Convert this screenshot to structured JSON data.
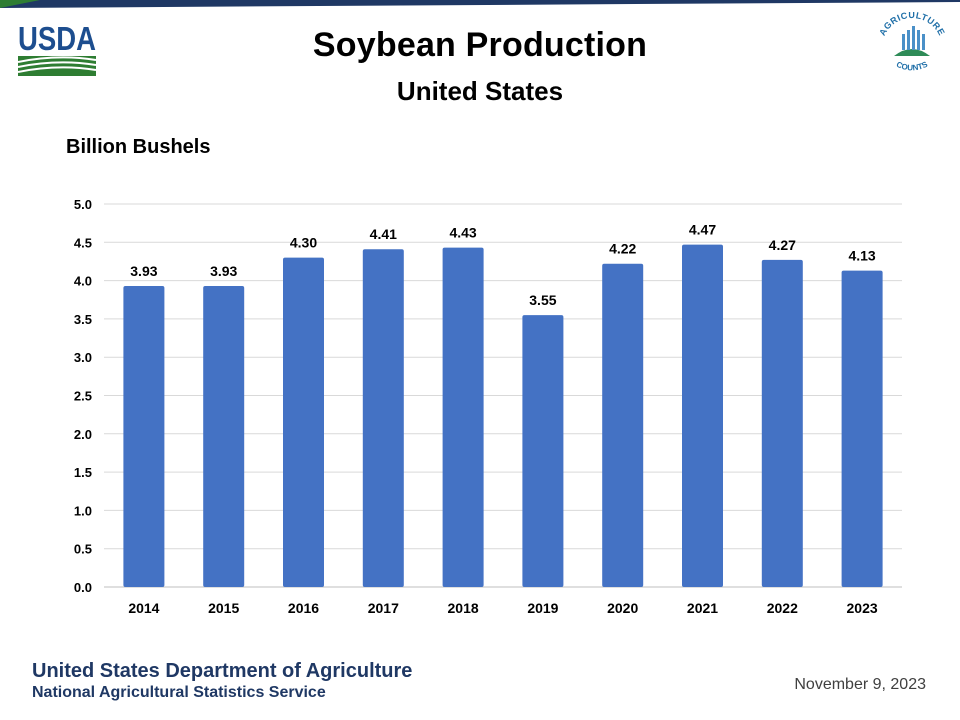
{
  "header": {
    "title": "Soybean Production",
    "subtitle": "United States",
    "usda_logo_text": "USDA",
    "ag_logo_text": "AGRICULTURE COUNTS"
  },
  "chart_data": {
    "type": "bar",
    "title": "Soybean Production",
    "subtitle": "United States",
    "ylabel": "Billion Bushels",
    "xlabel": "",
    "categories": [
      "2014",
      "2015",
      "2016",
      "2017",
      "2018",
      "2019",
      "2020",
      "2021",
      "2022",
      "2023"
    ],
    "values": [
      3.93,
      3.93,
      4.3,
      4.41,
      4.43,
      3.55,
      4.22,
      4.47,
      4.27,
      4.13
    ],
    "data_labels": [
      "3.93",
      "3.93",
      "4.30",
      "4.41",
      "4.43",
      "3.55",
      "4.22",
      "4.47",
      "4.27",
      "4.13"
    ],
    "ylim": [
      0,
      5.0
    ],
    "yticks": [
      "0.0",
      "0.5",
      "1.0",
      "1.5",
      "2.0",
      "2.5",
      "3.0",
      "3.5",
      "4.0",
      "4.5",
      "5.0"
    ],
    "grid": true,
    "legend": "none",
    "bar_color": "#4472c4"
  },
  "footer": {
    "org": "United States Department of Agriculture",
    "agency": "National Agricultural Statistics Service",
    "date": "November 9, 2023"
  },
  "colors": {
    "navy": "#1f3864",
    "green": "#2e7d32",
    "usda_blue": "#1d4e8f",
    "grid": "#d9d9d9"
  }
}
